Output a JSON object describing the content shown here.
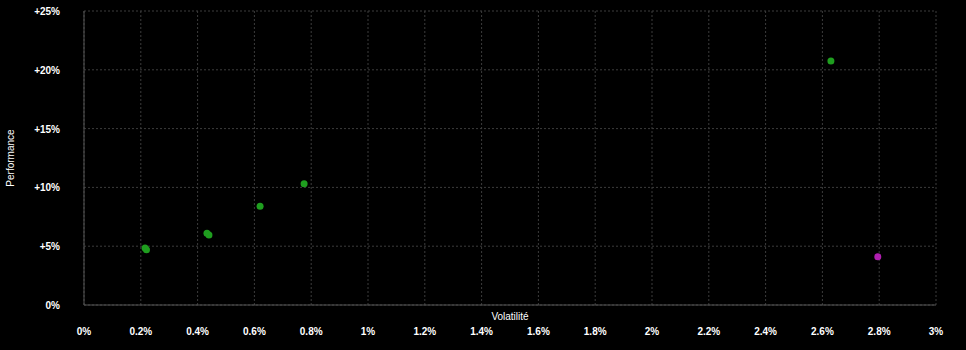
{
  "chart_data": {
    "type": "scatter",
    "x_label": "Volatilité",
    "y_label": "Performance",
    "series": [
      {
        "color": "#1f9e1f",
        "marker": "circle",
        "x": [
          0.215,
          0.22,
          0.433,
          0.44,
          0.62,
          0.775,
          2.63
        ],
        "values": [
          4.85,
          4.7,
          6.1,
          5.95,
          8.4,
          10.3,
          20.75
        ]
      },
      {
        "color": "#b01fb0",
        "marker": "circle",
        "x": [
          2.795
        ],
        "values": [
          4.1
        ]
      }
    ],
    "xlim": [
      0,
      3
    ],
    "ylim": [
      0,
      25
    ],
    "xticks": [
      {
        "value": 0,
        "label": "0%"
      },
      {
        "value": 0.2,
        "label": "0.2%"
      },
      {
        "value": 0.4,
        "label": "0.4%"
      },
      {
        "value": 0.6,
        "label": "0.6%"
      },
      {
        "value": 0.8,
        "label": "0.8%"
      },
      {
        "value": 1,
        "label": "1%"
      },
      {
        "value": 1.2,
        "label": "1.2%"
      },
      {
        "value": 1.4,
        "label": "1.4%"
      },
      {
        "value": 1.6,
        "label": "1.6%"
      },
      {
        "value": 1.8,
        "label": "1.8%"
      },
      {
        "value": 2,
        "label": "2%"
      },
      {
        "value": 2.2,
        "label": "2.2%"
      },
      {
        "value": 2.4,
        "label": "2.4%"
      },
      {
        "value": 2.6,
        "label": "2.6%"
      },
      {
        "value": 2.8,
        "label": "2.8%"
      },
      {
        "value": 3,
        "label": "3%"
      }
    ],
    "yticks": [
      {
        "value": 0,
        "label": "0%"
      },
      {
        "value": 5,
        "label": "+5%"
      },
      {
        "value": 10,
        "label": "+10%"
      },
      {
        "value": 15,
        "label": "+15%"
      },
      {
        "value": 20,
        "label": "+20%"
      },
      {
        "value": 25,
        "label": "+25%"
      }
    ],
    "grid": true
  }
}
